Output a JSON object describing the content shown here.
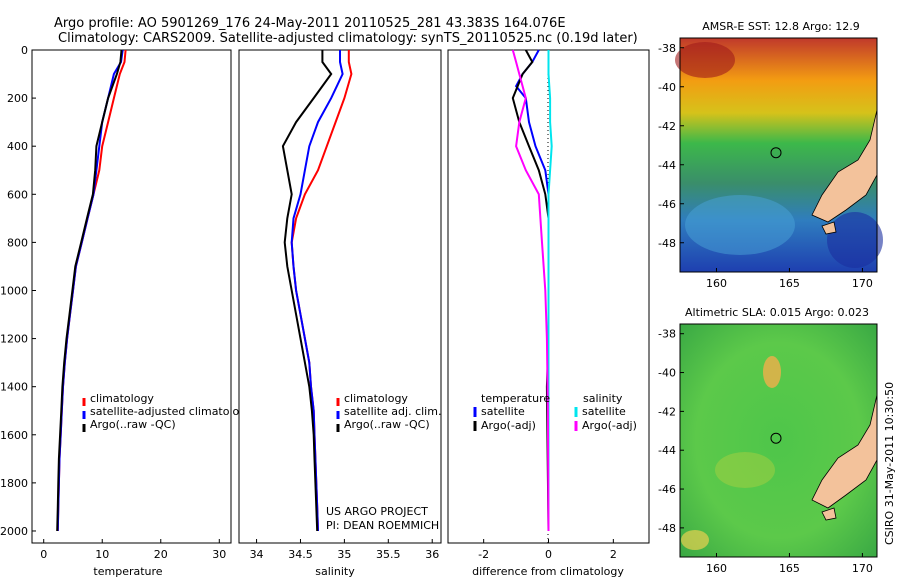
{
  "title": {
    "line1": "Argo profile: AO 5901269_176 24-May-2011 20110525_281 43.383S 164.076E",
    "line2": "Climatology: CARS2009. Satellite-adjusted climatology: synTS_20110525.nc (0.19d later)"
  },
  "side_credit": "CSIRO 31-May-2011 10:30:50",
  "footer": {
    "line1": "US ARGO PROJECT",
    "line2": "PI: DEAN ROEMMICH"
  },
  "colors": {
    "climatology": "#ff0000",
    "satellite": "#0000ff",
    "argo": "#000000",
    "sal_satellite": "#00e5ee",
    "sal_argo": "#ff00ff"
  },
  "chart_data": [
    {
      "type": "line",
      "xlabel": "temperature",
      "ylabel": "",
      "xlim": [
        -2,
        32
      ],
      "ylim": [
        0,
        2050
      ],
      "y_reversed": true,
      "xticks": [
        "0",
        "10",
        "20",
        "30"
      ],
      "yticks": [
        "0",
        "200",
        "400",
        "600",
        "800",
        "1000",
        "1200",
        "1400",
        "1600",
        "1800",
        "2000"
      ],
      "legend": [
        "climatology",
        "satellite-adjusted climatology",
        "Argo(..raw -QC)"
      ],
      "series": [
        {
          "name": "climatology",
          "color": "#ff0000",
          "points": [
            [
              14,
              0
            ],
            [
              13.8,
              50
            ],
            [
              13,
              100
            ],
            [
              12,
              200
            ],
            [
              11,
              300
            ],
            [
              10,
              400
            ],
            [
              9.5,
              500
            ],
            [
              8.5,
              600
            ],
            [
              7.5,
              700
            ],
            [
              6.5,
              800
            ],
            [
              5.5,
              900
            ],
            [
              5,
              1000
            ],
            [
              4.5,
              1100
            ],
            [
              4,
              1200
            ],
            [
              3.6,
              1300
            ],
            [
              3.3,
              1400
            ],
            [
              3.1,
              1500
            ],
            [
              2.9,
              1600
            ],
            [
              2.7,
              1700
            ],
            [
              2.6,
              1800
            ],
            [
              2.5,
              1900
            ],
            [
              2.4,
              2000
            ]
          ]
        },
        {
          "name": "satellite-adjusted climatology",
          "color": "#0000ff",
          "points": [
            [
              13.5,
              0
            ],
            [
              13.2,
              50
            ],
            [
              12,
              100
            ],
            [
              11,
              200
            ],
            [
              10,
              300
            ],
            [
              9.5,
              400
            ],
            [
              9,
              500
            ],
            [
              8.5,
              600
            ],
            [
              7.5,
              700
            ],
            [
              6.5,
              800
            ],
            [
              5.5,
              900
            ],
            [
              5,
              1000
            ],
            [
              4.5,
              1100
            ],
            [
              4,
              1200
            ],
            [
              3.6,
              1300
            ],
            [
              3.3,
              1400
            ],
            [
              3.1,
              1500
            ],
            [
              2.9,
              1600
            ],
            [
              2.7,
              1700
            ],
            [
              2.6,
              1800
            ],
            [
              2.5,
              1900
            ],
            [
              2.4,
              2000
            ]
          ]
        },
        {
          "name": "Argo(..raw -QC)",
          "color": "#000000",
          "points": [
            [
              13.3,
              0
            ],
            [
              13.1,
              50
            ],
            [
              12.5,
              100
            ],
            [
              11,
              200
            ],
            [
              10,
              300
            ],
            [
              9,
              400
            ],
            [
              8.8,
              500
            ],
            [
              8.4,
              600
            ],
            [
              7.4,
              700
            ],
            [
              6.4,
              800
            ],
            [
              5.4,
              900
            ],
            [
              4.9,
              1000
            ],
            [
              4.4,
              1100
            ],
            [
              3.9,
              1200
            ],
            [
              3.5,
              1300
            ],
            [
              3.2,
              1400
            ],
            [
              3,
              1500
            ],
            [
              2.8,
              1600
            ],
            [
              2.6,
              1700
            ],
            [
              2.5,
              1800
            ],
            [
              2.4,
              1900
            ],
            [
              2.3,
              2000
            ]
          ]
        }
      ]
    },
    {
      "type": "line",
      "xlabel": "salinity",
      "xlim": [
        33.8,
        36.1
      ],
      "ylim": [
        0,
        2050
      ],
      "y_reversed": true,
      "xticks": [
        "34",
        "34.5",
        "35",
        "35.5",
        "36"
      ],
      "legend": [
        "climatology",
        "satellite adj. clim.",
        "Argo(..raw -QC)"
      ],
      "series": [
        {
          "name": "climatology",
          "color": "#ff0000",
          "points": [
            [
              35.05,
              0
            ],
            [
              35.05,
              50
            ],
            [
              35.08,
              100
            ],
            [
              35,
              200
            ],
            [
              34.9,
              300
            ],
            [
              34.8,
              400
            ],
            [
              34.7,
              500
            ],
            [
              34.55,
              600
            ],
            [
              34.45,
              700
            ],
            [
              34.4,
              800
            ],
            [
              34.42,
              900
            ],
            [
              34.45,
              1000
            ],
            [
              34.5,
              1100
            ],
            [
              34.55,
              1200
            ],
            [
              34.6,
              1300
            ],
            [
              34.62,
              1400
            ],
            [
              34.65,
              1500
            ],
            [
              34.66,
              1600
            ],
            [
              34.67,
              1700
            ],
            [
              34.68,
              1800
            ],
            [
              34.69,
              1900
            ],
            [
              34.7,
              2000
            ]
          ]
        },
        {
          "name": "satellite adj. clim.",
          "color": "#0000ff",
          "points": [
            [
              34.95,
              0
            ],
            [
              34.95,
              50
            ],
            [
              34.98,
              100
            ],
            [
              34.85,
              200
            ],
            [
              34.7,
              300
            ],
            [
              34.6,
              400
            ],
            [
              34.55,
              500
            ],
            [
              34.5,
              600
            ],
            [
              34.42,
              700
            ],
            [
              34.4,
              800
            ],
            [
              34.42,
              900
            ],
            [
              34.45,
              1000
            ],
            [
              34.5,
              1100
            ],
            [
              34.55,
              1200
            ],
            [
              34.6,
              1300
            ],
            [
              34.62,
              1400
            ],
            [
              34.65,
              1500
            ],
            [
              34.66,
              1600
            ],
            [
              34.67,
              1700
            ],
            [
              34.68,
              1800
            ],
            [
              34.69,
              1900
            ],
            [
              34.7,
              2000
            ]
          ]
        },
        {
          "name": "Argo(..raw -QC)",
          "color": "#000000",
          "points": [
            [
              34.75,
              0
            ],
            [
              34.75,
              50
            ],
            [
              34.85,
              100
            ],
            [
              34.65,
              200
            ],
            [
              34.45,
              300
            ],
            [
              34.3,
              400
            ],
            [
              34.35,
              500
            ],
            [
              34.4,
              600
            ],
            [
              34.35,
              700
            ],
            [
              34.32,
              800
            ],
            [
              34.35,
              900
            ],
            [
              34.4,
              1000
            ],
            [
              34.45,
              1100
            ],
            [
              34.5,
              1200
            ],
            [
              34.55,
              1300
            ],
            [
              34.6,
              1400
            ],
            [
              34.63,
              1500
            ],
            [
              34.65,
              1600
            ],
            [
              34.66,
              1700
            ],
            [
              34.67,
              1800
            ],
            [
              34.68,
              1900
            ],
            [
              34.69,
              2000
            ]
          ]
        }
      ]
    },
    {
      "type": "line",
      "xlabel": "difference from climatology",
      "xlim": [
        -3.1,
        3.1
      ],
      "ylim": [
        0,
        2050
      ],
      "y_reversed": true,
      "xticks": [
        "-2",
        "0",
        "2"
      ],
      "legend": [
        "temperature",
        "satellite",
        "Argo(-adj)",
        "salinity",
        "satellite",
        "Argo(-adj)"
      ],
      "series": [
        {
          "name": "temperature satellite",
          "color": "#0000ff",
          "points": [
            [
              -0.3,
              0
            ],
            [
              -0.5,
              50
            ],
            [
              -0.8,
              100
            ],
            [
              -1,
              150
            ],
            [
              -0.7,
              200
            ],
            [
              -0.6,
              300
            ],
            [
              -0.4,
              400
            ],
            [
              -0.1,
              500
            ],
            [
              0,
              600
            ],
            [
              0,
              800
            ],
            [
              0,
              1000
            ],
            [
              0,
              1500
            ],
            [
              0,
              2000
            ]
          ]
        },
        {
          "name": "temperature Argo(-adj)",
          "color": "#000000",
          "points": [
            [
              -0.7,
              0
            ],
            [
              -0.5,
              50
            ],
            [
              -0.8,
              100
            ],
            [
              -1.1,
              200
            ],
            [
              -0.9,
              300
            ],
            [
              -0.6,
              400
            ],
            [
              -0.3,
              500
            ],
            [
              -0.1,
              600
            ],
            [
              0,
              700
            ],
            [
              0,
              1000
            ],
            [
              0,
              1200
            ],
            [
              -0.05,
              1400
            ],
            [
              0,
              2000
            ]
          ]
        },
        {
          "name": "salinity satellite",
          "color": "#00e5ee",
          "points": [
            [
              0,
              0
            ],
            [
              0,
              100
            ],
            [
              0.05,
              200
            ],
            [
              0.05,
              300
            ],
            [
              0.1,
              400
            ],
            [
              0.05,
              500
            ],
            [
              0,
              600
            ],
            [
              0,
              1000
            ],
            [
              0,
              1500
            ],
            [
              0,
              2000
            ]
          ]
        },
        {
          "name": "salinity Argo(-adj)",
          "color": "#ff00ff",
          "points": [
            [
              -1.1,
              0
            ],
            [
              -1,
              50
            ],
            [
              -0.9,
              100
            ],
            [
              -0.7,
              200
            ],
            [
              -0.9,
              300
            ],
            [
              -1,
              400
            ],
            [
              -0.7,
              500
            ],
            [
              -0.3,
              600
            ],
            [
              -0.2,
              800
            ],
            [
              -0.1,
              1000
            ],
            [
              -0.05,
              1200
            ],
            [
              -0.02,
              1500
            ],
            [
              0,
              2000
            ]
          ]
        }
      ]
    },
    {
      "type": "heatmap",
      "title": "AMSR-E SST: 12.8  Argo: 12.9",
      "xticks": [
        "160",
        "165",
        "170"
      ],
      "yticks": [
        "-38",
        "-40",
        "-42",
        "-44",
        "-46",
        "-48"
      ],
      "xlim": [
        157.5,
        171
      ],
      "ylim": [
        -49.5,
        -37.5
      ],
      "marker": {
        "lon": 164.076,
        "lat": -43.383
      }
    },
    {
      "type": "heatmap",
      "title": "Altimetric SLA: 0.015  Argo: 0.023",
      "xticks": [
        "160",
        "165",
        "170"
      ],
      "yticks": [
        "-38",
        "-40",
        "-42",
        "-44",
        "-46",
        "-48"
      ],
      "xlim": [
        157.5,
        171
      ],
      "ylim": [
        -49.5,
        -37.5
      ],
      "marker": {
        "lon": 164.076,
        "lat": -43.383
      }
    }
  ]
}
